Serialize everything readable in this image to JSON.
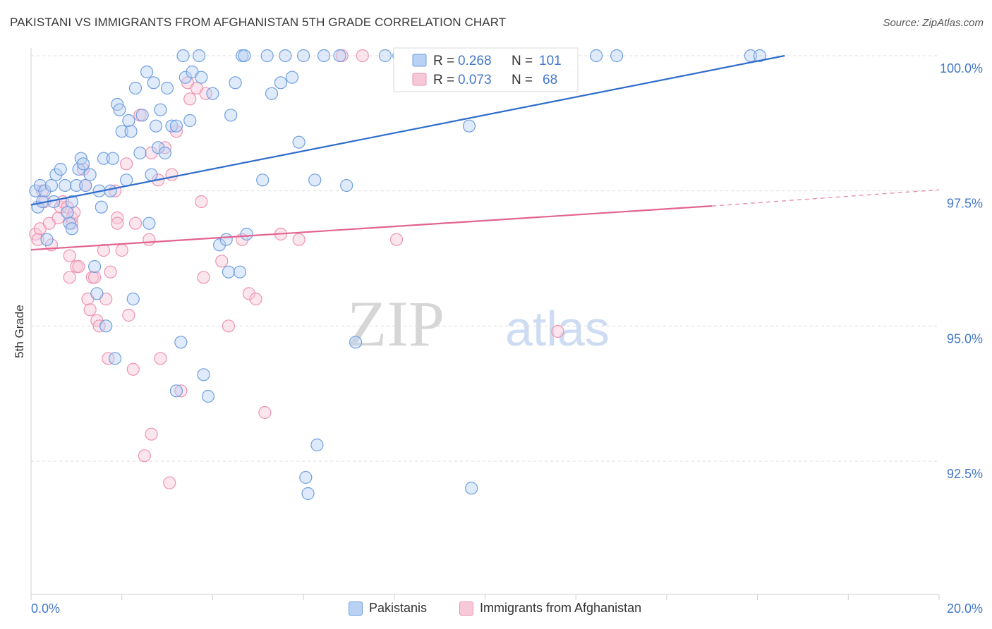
{
  "header": {
    "title": "PAKISTANI VS IMMIGRANTS FROM AFGHANISTAN 5TH GRADE CORRELATION CHART",
    "source": "Source: ZipAtlas.com"
  },
  "watermark": {
    "zip": "ZIP",
    "atlas": "atlas"
  },
  "colors": {
    "blue": "#6f9fe0",
    "blue_fill": "#b9d1f3",
    "blue_line": "#2f6ccc",
    "pink": "#ee92b2",
    "pink_fill": "#f7c8d8",
    "pink_line": "#e2638f",
    "axis_text": "#4377c9"
  },
  "chart_data": {
    "type": "scatter",
    "title": "PAKISTANI VS IMMIGRANTS FROM AFGHANISTAN 5TH GRADE CORRELATION CHART",
    "xlabel": "",
    "ylabel": "5th Grade",
    "xlim": [
      0.0,
      20.0
    ],
    "ylim": [
      90.0,
      100.25
    ],
    "x_tick_labels": [
      "0.0%",
      "20.0%"
    ],
    "y_ticks": [
      92.5,
      95.0,
      97.5,
      100.0
    ],
    "y_tick_labels": [
      "92.5%",
      "95.0%",
      "97.5%",
      "100.0%"
    ],
    "grid": true,
    "legend_position": "top-center",
    "stats": [
      {
        "r_label": "R =",
        "r_value": "0.268",
        "n_label": "N =",
        "n_value": "101"
      },
      {
        "r_label": "R =",
        "r_value": "0.073",
        "n_label": "N =",
        "n_value": "68"
      }
    ],
    "series": [
      {
        "name": "Pakistanis",
        "color": "#6f9fe0",
        "trend": {
          "x0": 0.0,
          "y0": 97.24,
          "x1": 16.6,
          "y1": 100.0,
          "dashed_to": 16.6
        },
        "points": [
          [
            0.1,
            97.5
          ],
          [
            0.15,
            97.2
          ],
          [
            0.2,
            97.6
          ],
          [
            0.25,
            97.3
          ],
          [
            0.3,
            97.5
          ],
          [
            0.35,
            96.6
          ],
          [
            0.45,
            97.6
          ],
          [
            0.5,
            97.3
          ],
          [
            0.55,
            97.8
          ],
          [
            0.65,
            97.9
          ],
          [
            0.75,
            97.6
          ],
          [
            0.8,
            97.1
          ],
          [
            0.85,
            96.9
          ],
          [
            0.9,
            97.3
          ],
          [
            0.9,
            96.8
          ],
          [
            1.0,
            97.6
          ],
          [
            1.05,
            97.9
          ],
          [
            1.1,
            98.1
          ],
          [
            1.15,
            98.0
          ],
          [
            1.2,
            97.6
          ],
          [
            1.3,
            97.8
          ],
          [
            1.4,
            96.1
          ],
          [
            1.45,
            95.6
          ],
          [
            1.5,
            97.5
          ],
          [
            1.55,
            97.2
          ],
          [
            1.6,
            98.1
          ],
          [
            1.65,
            95.0
          ],
          [
            1.75,
            97.5
          ],
          [
            1.8,
            98.1
          ],
          [
            1.85,
            94.4
          ],
          [
            1.9,
            99.1
          ],
          [
            1.95,
            99.0
          ],
          [
            2.0,
            98.6
          ],
          [
            2.1,
            97.7
          ],
          [
            2.15,
            98.8
          ],
          [
            2.2,
            98.6
          ],
          [
            2.25,
            95.5
          ],
          [
            2.3,
            99.4
          ],
          [
            2.4,
            98.2
          ],
          [
            2.45,
            98.9
          ],
          [
            2.55,
            99.7
          ],
          [
            2.6,
            96.9
          ],
          [
            2.65,
            97.8
          ],
          [
            2.7,
            99.5
          ],
          [
            2.75,
            98.7
          ],
          [
            2.8,
            98.3
          ],
          [
            2.85,
            99.0
          ],
          [
            2.95,
            98.2
          ],
          [
            3.0,
            99.4
          ],
          [
            3.1,
            98.7
          ],
          [
            3.2,
            98.7
          ],
          [
            3.2,
            93.8
          ],
          [
            3.3,
            94.7
          ],
          [
            3.35,
            100.0
          ],
          [
            3.4,
            99.6
          ],
          [
            3.5,
            98.8
          ],
          [
            3.55,
            99.7
          ],
          [
            3.7,
            100.0
          ],
          [
            3.75,
            99.6
          ],
          [
            3.8,
            94.1
          ],
          [
            3.9,
            93.7
          ],
          [
            4.0,
            99.3
          ],
          [
            4.15,
            96.5
          ],
          [
            4.3,
            96.6
          ],
          [
            4.35,
            96.0
          ],
          [
            4.4,
            98.9
          ],
          [
            4.5,
            99.5
          ],
          [
            4.6,
            96.0
          ],
          [
            4.65,
            100.0
          ],
          [
            4.7,
            100.0
          ],
          [
            4.75,
            96.7
          ],
          [
            5.1,
            97.7
          ],
          [
            5.2,
            100.0
          ],
          [
            5.3,
            99.3
          ],
          [
            5.5,
            99.5
          ],
          [
            5.6,
            100.0
          ],
          [
            5.75,
            99.6
          ],
          [
            5.9,
            98.4
          ],
          [
            6.0,
            100.0
          ],
          [
            6.05,
            92.2
          ],
          [
            6.1,
            91.9
          ],
          [
            6.25,
            97.7
          ],
          [
            6.3,
            92.8
          ],
          [
            6.45,
            100.0
          ],
          [
            6.8,
            100.0
          ],
          [
            6.95,
            97.6
          ],
          [
            7.15,
            94.7
          ],
          [
            7.8,
            100.0
          ],
          [
            8.1,
            100.0
          ],
          [
            8.3,
            100.0
          ],
          [
            8.55,
            100.0
          ],
          [
            8.85,
            100.0
          ],
          [
            9.3,
            100.0
          ],
          [
            9.65,
            98.7
          ],
          [
            9.7,
            92.0
          ],
          [
            10.2,
            100.0
          ],
          [
            11.3,
            100.0
          ],
          [
            12.45,
            100.0
          ],
          [
            12.9,
            100.0
          ],
          [
            15.85,
            100.0
          ],
          [
            16.05,
            100.0
          ]
        ]
      },
      {
        "name": "Immigrants from Afghanistan",
        "color": "#ee92b2",
        "trend": {
          "x0": 0.0,
          "y0": 96.41,
          "x1": 15.0,
          "y1": 97.22,
          "dashed_to": 20.0,
          "dashed_y": 97.52
        },
        "points": [
          [
            0.1,
            96.7
          ],
          [
            0.15,
            96.6
          ],
          [
            0.2,
            96.8
          ],
          [
            0.25,
            97.5
          ],
          [
            0.3,
            97.3
          ],
          [
            0.4,
            96.9
          ],
          [
            0.45,
            96.5
          ],
          [
            0.6,
            97.0
          ],
          [
            0.65,
            97.2
          ],
          [
            0.7,
            97.3
          ],
          [
            0.8,
            97.2
          ],
          [
            0.85,
            96.3
          ],
          [
            0.85,
            95.9
          ],
          [
            0.9,
            96.9
          ],
          [
            0.9,
            97.0
          ],
          [
            0.95,
            97.1
          ],
          [
            1.0,
            96.1
          ],
          [
            1.05,
            96.1
          ],
          [
            1.15,
            97.9
          ],
          [
            1.2,
            97.6
          ],
          [
            1.25,
            95.5
          ],
          [
            1.3,
            95.3
          ],
          [
            1.35,
            95.9
          ],
          [
            1.4,
            95.9
          ],
          [
            1.45,
            95.1
          ],
          [
            1.5,
            95.0
          ],
          [
            1.6,
            96.4
          ],
          [
            1.65,
            95.5
          ],
          [
            1.7,
            94.4
          ],
          [
            1.75,
            96.0
          ],
          [
            1.85,
            97.5
          ],
          [
            1.9,
            97.0
          ],
          [
            1.9,
            96.9
          ],
          [
            2.0,
            96.4
          ],
          [
            2.1,
            98.0
          ],
          [
            2.15,
            95.2
          ],
          [
            2.25,
            94.2
          ],
          [
            2.3,
            96.9
          ],
          [
            2.4,
            98.9
          ],
          [
            2.5,
            92.6
          ],
          [
            2.6,
            96.6
          ],
          [
            2.65,
            98.2
          ],
          [
            2.65,
            93.0
          ],
          [
            2.8,
            97.7
          ],
          [
            2.85,
            94.4
          ],
          [
            2.95,
            98.3
          ],
          [
            3.05,
            92.1
          ],
          [
            3.1,
            97.8
          ],
          [
            3.2,
            98.6
          ],
          [
            3.3,
            93.8
          ],
          [
            3.45,
            99.5
          ],
          [
            3.5,
            99.2
          ],
          [
            3.65,
            99.4
          ],
          [
            3.75,
            97.3
          ],
          [
            3.8,
            95.9
          ],
          [
            3.85,
            99.3
          ],
          [
            4.2,
            96.2
          ],
          [
            4.35,
            95.0
          ],
          [
            4.65,
            96.6
          ],
          [
            4.8,
            95.6
          ],
          [
            4.95,
            95.5
          ],
          [
            5.15,
            93.4
          ],
          [
            5.5,
            96.7
          ],
          [
            5.9,
            96.6
          ],
          [
            6.85,
            100.0
          ],
          [
            7.3,
            100.0
          ],
          [
            8.05,
            96.6
          ],
          [
            11.6,
            94.9
          ]
        ]
      }
    ]
  },
  "legend": {
    "items": [
      "Pakistanis",
      "Immigrants from Afghanistan"
    ]
  }
}
